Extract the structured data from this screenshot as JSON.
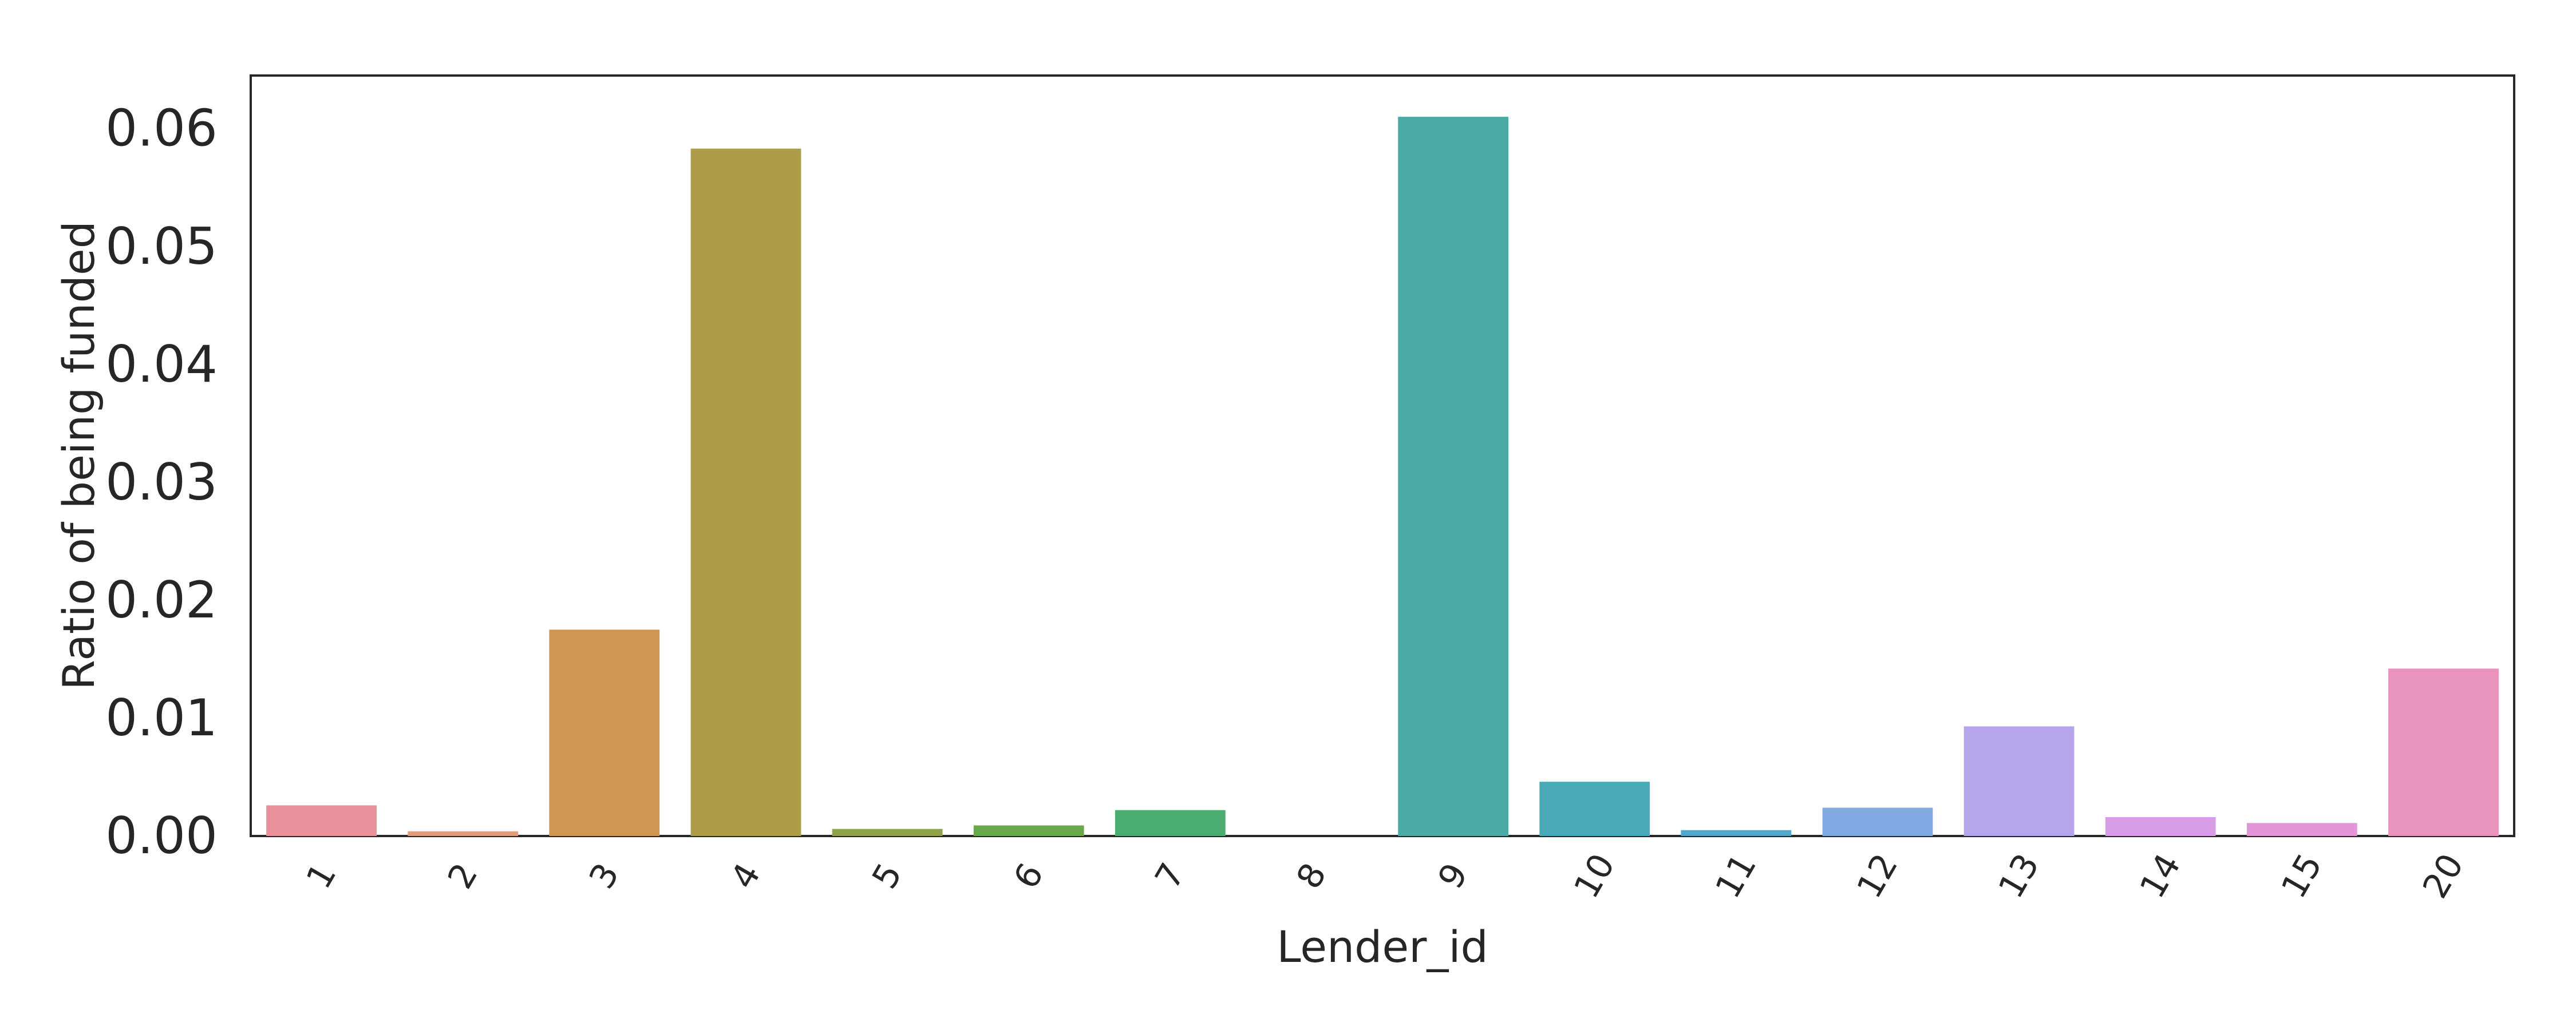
{
  "chart_data": {
    "type": "bar",
    "title": "",
    "xlabel": "Lender_id",
    "ylabel": "Ratio of being funded",
    "ylim": [
      0,
      0.0645
    ],
    "yticks": [
      0.0,
      0.01,
      0.02,
      0.03,
      0.04,
      0.05,
      0.06
    ],
    "ytick_labels": [
      "0.00",
      "0.01",
      "0.02",
      "0.03",
      "0.04",
      "0.05",
      "0.06"
    ],
    "grid": false,
    "xtick_rotation": -60,
    "categories": [
      "1",
      "2",
      "3",
      "4",
      "5",
      "6",
      "7",
      "8",
      "9",
      "10",
      "11",
      "12",
      "13",
      "14",
      "15",
      "20"
    ],
    "values": [
      0.0026,
      0.0004,
      0.0175,
      0.0583,
      0.0006,
      0.0009,
      0.0022,
      0.0,
      0.061,
      0.0046,
      0.0005,
      0.0024,
      0.0093,
      0.0016,
      0.0011,
      0.0142
    ],
    "colors": [
      "#e8919b",
      "#e09a80",
      "#cd9652",
      "#ad9d48",
      "#8ea34a",
      "#6aa74b",
      "#4aac6e",
      "#4bab94",
      "#4aaba6",
      "#4aa9b7",
      "#53a7c9",
      "#82a9e2",
      "#b6a5e9",
      "#d79de6",
      "#e295d8",
      "#e894bd"
    ]
  }
}
